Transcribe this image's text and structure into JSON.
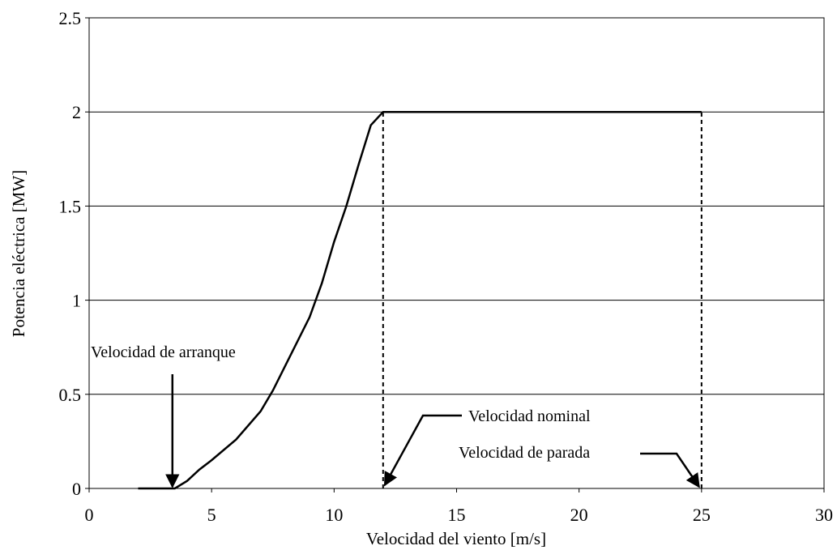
{
  "chart_data": {
    "type": "line",
    "xlabel": "Velocidad del viento [m/s]",
    "ylabel": "Potencia eléctrica [MW]",
    "x": [
      2,
      3.5,
      4,
      4.5,
      5,
      6,
      7,
      7.5,
      8,
      9,
      9.5,
      10,
      10.5,
      11,
      11.5,
      12,
      25
    ],
    "values": [
      0,
      0,
      0.04,
      0.1,
      0.15,
      0.26,
      0.41,
      0.52,
      0.65,
      0.91,
      1.09,
      1.31,
      1.5,
      1.72,
      1.93,
      2,
      2
    ],
    "color": "#000000",
    "xlim": [
      0,
      30
    ],
    "xticks": [
      0,
      5,
      10,
      15,
      20,
      25,
      30
    ],
    "ylim": [
      0,
      2.5
    ],
    "yticks": [
      0,
      0.5,
      1,
      1.5,
      2,
      2.5
    ],
    "grid": true,
    "annotations": [
      {
        "text": "Velocidad de arranque",
        "x": 3.4
      },
      {
        "text": "Velocidad nominal",
        "x": 12
      },
      {
        "text": "Velocidad de parada",
        "x": 25
      }
    ]
  }
}
